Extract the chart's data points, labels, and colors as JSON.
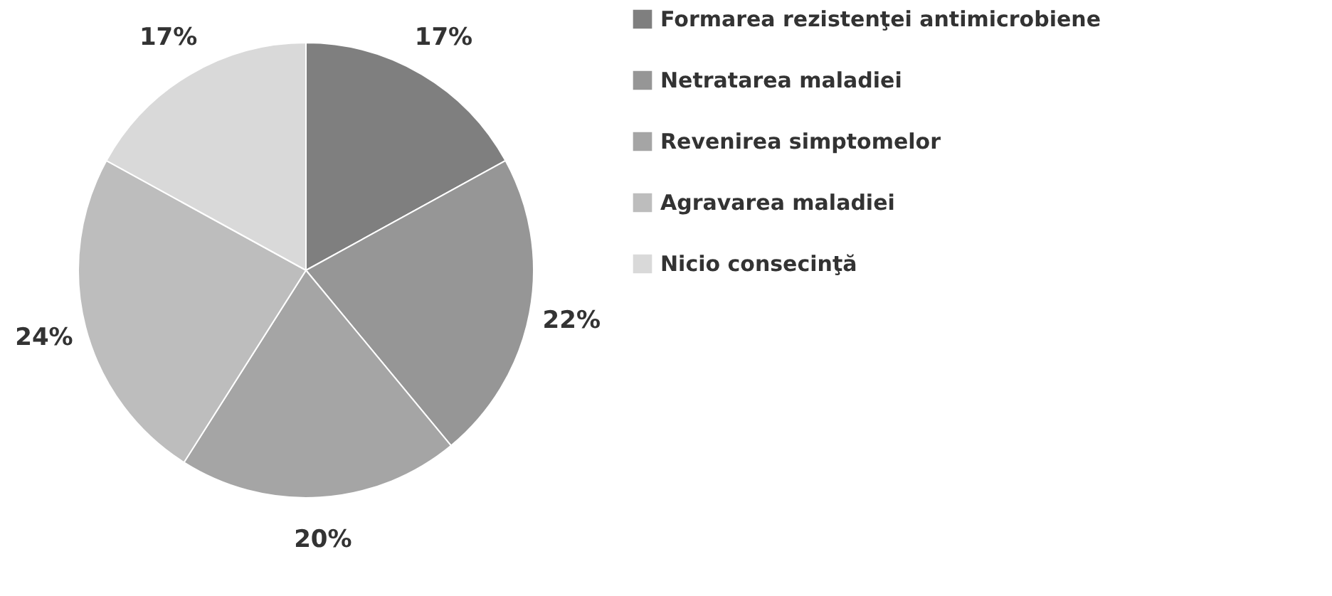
{
  "chart_data": {
    "type": "pie",
    "categories": [
      "Formarea rezistenţei antimicrobiene",
      "Netratarea maladiei",
      "Revenirea simptomelor",
      "Agravarea maladiei",
      "Nicio consecinţă"
    ],
    "values": [
      17,
      22,
      20,
      24,
      17
    ],
    "colors": [
      "#7f7f7f",
      "#969696",
      "#a5a5a5",
      "#bdbdbd",
      "#d9d9d9"
    ],
    "value_labels": [
      "17%",
      "22%",
      "20%",
      "24%",
      "17%"
    ],
    "legend": "right"
  }
}
